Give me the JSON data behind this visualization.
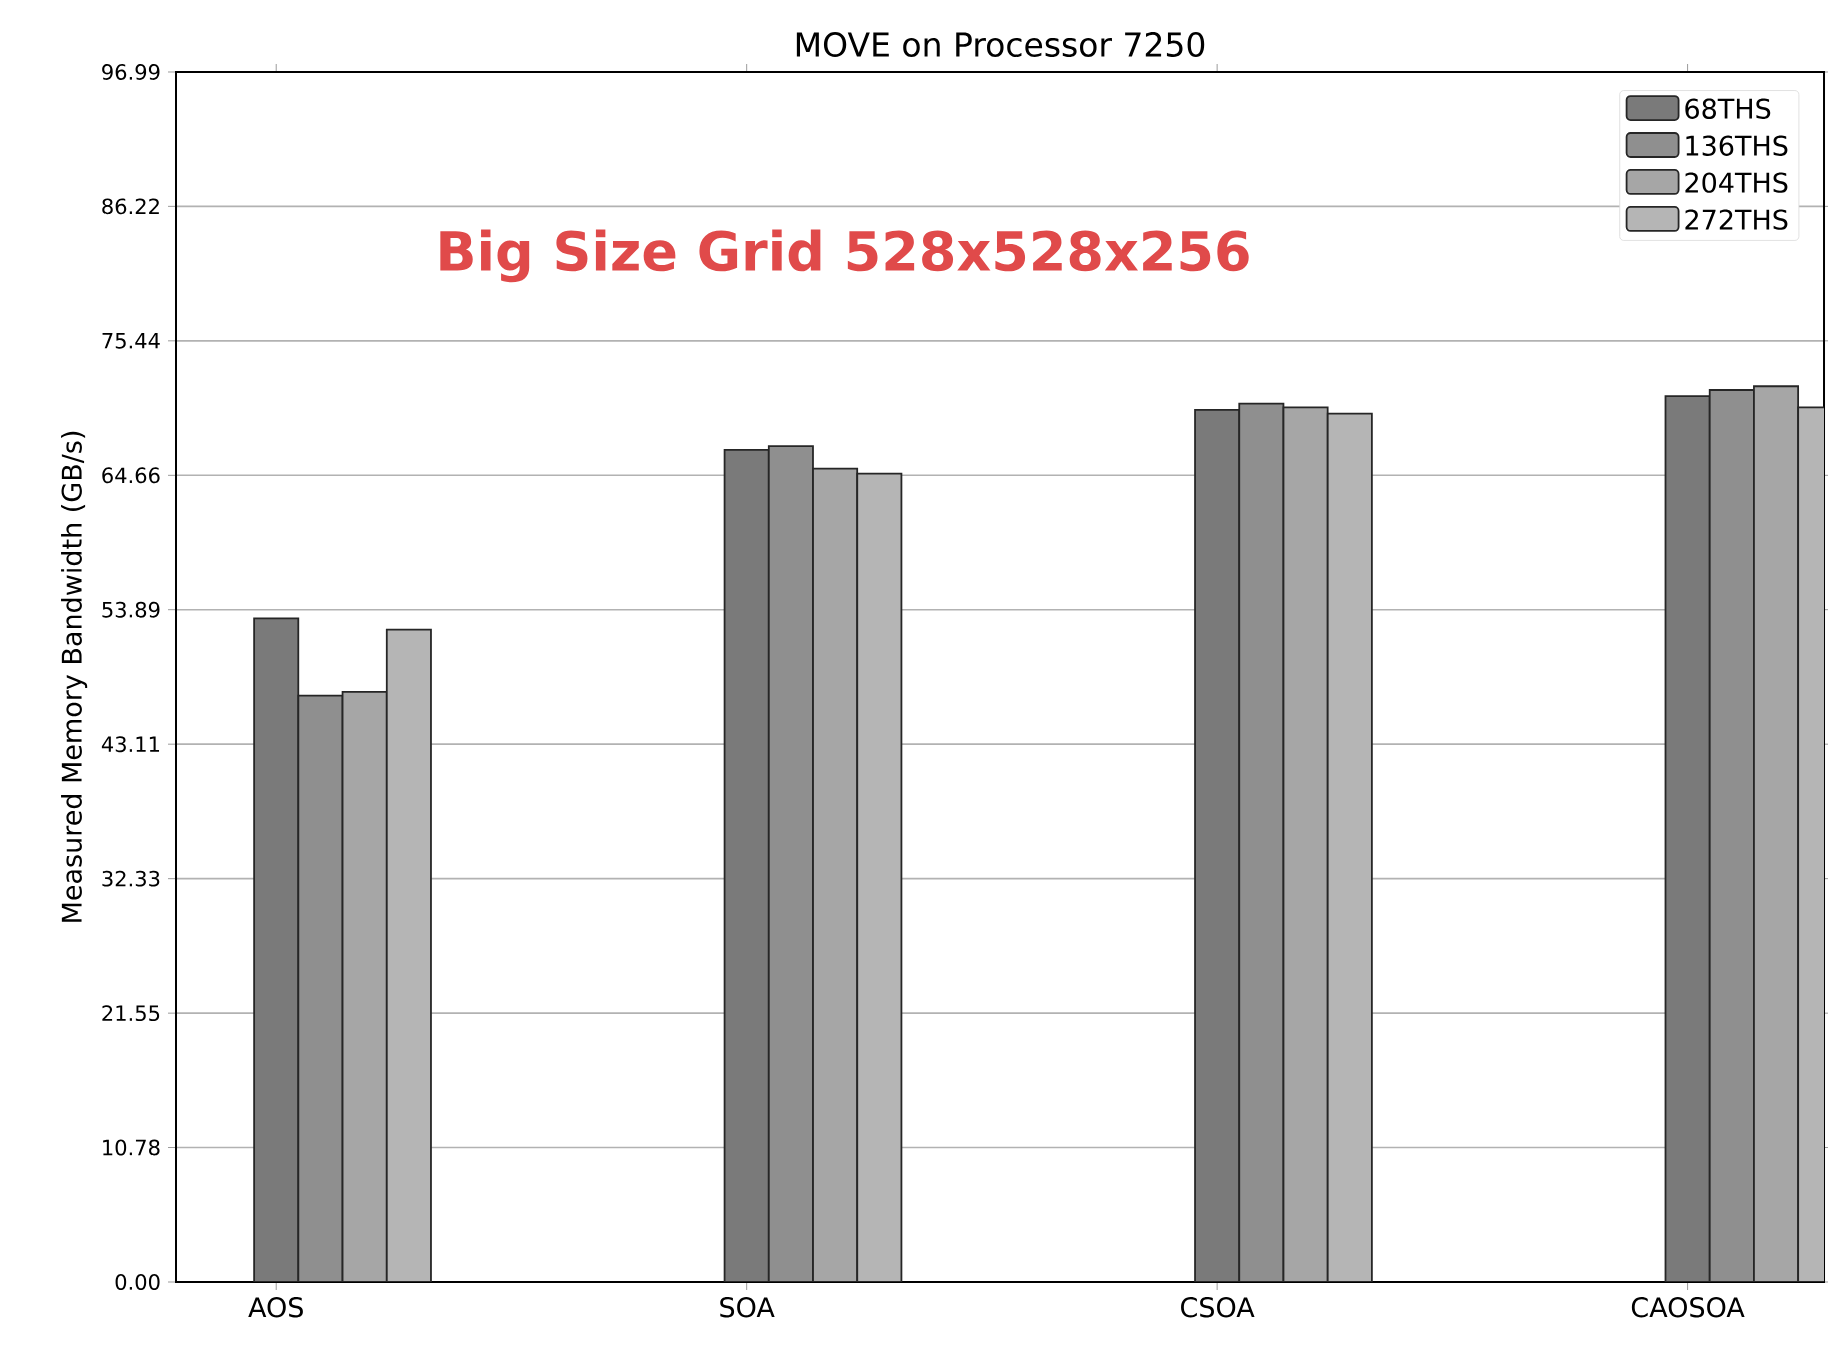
{
  "chart_data": {
    "type": "bar",
    "title": "MOVE on Processor 7250",
    "ylabel": "Measured Memory Bandwidth (GB/s)",
    "annotations": [
      "Big Size Grid 528x528x256"
    ],
    "categories": [
      "AOS",
      "SOA",
      "CSOA",
      "CAOSOA"
    ],
    "series": [
      {
        "name": "68THS",
        "color": "#7a7a7a",
        "values": [
          53.2,
          66.7,
          69.9,
          71.0
        ]
      },
      {
        "name": "136THS",
        "color": "#8f8f8f",
        "values": [
          47.0,
          67.0,
          70.4,
          71.5
        ]
      },
      {
        "name": "204THS",
        "color": "#a6a6a6",
        "values": [
          47.3,
          65.2,
          70.1,
          71.8
        ]
      },
      {
        "name": "272THS",
        "color": "#b5b5b5",
        "values": [
          52.3,
          64.8,
          69.6,
          70.1
        ]
      }
    ],
    "ylim": [
      0,
      96.99
    ],
    "yticks": [
      {
        "value": 0,
        "label": "0.00"
      },
      {
        "value": 10.78,
        "label": "10.78"
      },
      {
        "value": 21.55,
        "label": "21.55"
      },
      {
        "value": 32.33,
        "label": "32.33"
      },
      {
        "value": 43.11,
        "label": "43.11"
      },
      {
        "value": 53.89,
        "label": "53.89"
      },
      {
        "value": 64.66,
        "label": "64.66"
      },
      {
        "value": 75.44,
        "label": "75.44"
      },
      {
        "value": 86.22,
        "label": "86.22"
      },
      {
        "value": 96.99,
        "label": "96.99"
      }
    ],
    "grid": "y",
    "legend": "top right"
  }
}
